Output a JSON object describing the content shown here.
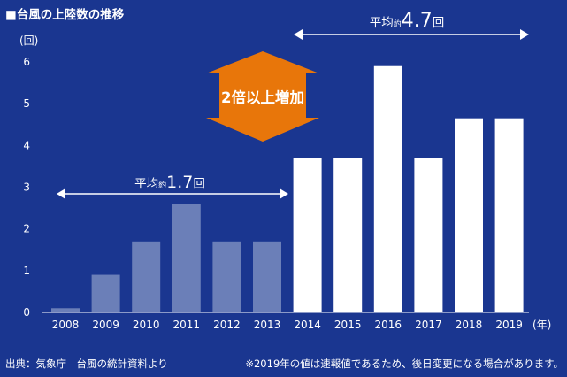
{
  "chart_data": {
    "type": "bar",
    "title": "■台風の上陸数の推移",
    "ylabel": "(回)",
    "xlabel": "(年)",
    "ylim": [
      0,
      6
    ],
    "yticks": [
      "0",
      "1",
      "2",
      "3",
      "4",
      "5",
      "6"
    ],
    "categories": [
      "2008",
      "2009",
      "2010",
      "2011",
      "2012",
      "2013",
      "2014",
      "2015",
      "2016",
      "2017",
      "2018",
      "2019"
    ],
    "values": [
      0.1,
      0.9,
      1.7,
      2.6,
      1.7,
      1.7,
      3.7,
      3.7,
      5.9,
      3.7,
      4.65,
      4.65
    ],
    "colors": {
      "background": "#1a3690",
      "bar_before": "#6b7fb8",
      "bar_after": "#ffffff",
      "badge": "#e8760a",
      "text": "#ffffff"
    },
    "annotations": {
      "avg_before": {
        "prefix": "平均",
        "small": "約",
        "value": "1.7",
        "unit": "回",
        "range": [
          "2008",
          "2013"
        ]
      },
      "avg_after": {
        "prefix": "平均",
        "small": "約",
        "value": "4.7",
        "unit": "回",
        "range": [
          "2014",
          "2019"
        ]
      },
      "increase_badge": "2倍以上増加"
    }
  },
  "footer": {
    "source": "出典：気象庁　台風の統計資料より",
    "note": "※2019年の値は速報値であるため、後日変更になる場合があります。"
  }
}
